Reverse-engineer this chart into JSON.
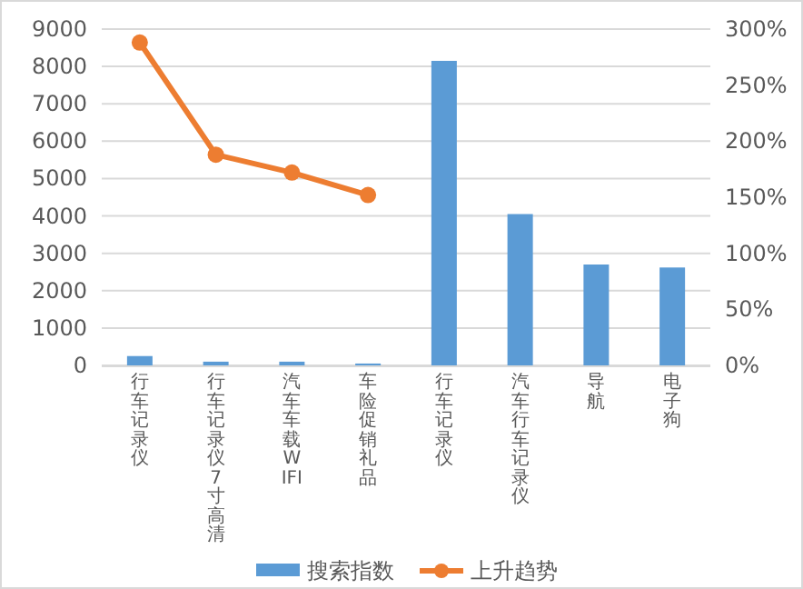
{
  "chart_data": {
    "type": "bar",
    "categories": [
      "行车记录仪",
      "行车记录仪7寸高清",
      "汽车车载WIFI",
      "车险促销礼品",
      "行车记录仪",
      "汽车行车记录仪",
      "导航",
      "电子狗"
    ],
    "series": [
      {
        "name": "搜索指数",
        "type": "bar",
        "color": "#5b9bd5",
        "values": [
          250,
          100,
          100,
          50,
          8150,
          4050,
          2700,
          2620
        ]
      },
      {
        "name": "上升趋势",
        "type": "line",
        "axis": "y2",
        "color": "#ed7d31",
        "marker": "circle",
        "values": [
          288,
          188,
          172,
          152,
          null,
          null,
          null,
          null
        ]
      }
    ],
    "ylim": [
      0,
      9000
    ],
    "yticks": [
      0,
      1000,
      2000,
      3000,
      4000,
      5000,
      6000,
      7000,
      8000,
      9000
    ],
    "y2lim": [
      0,
      300
    ],
    "y2ticks": [
      {
        "value": 0,
        "label": "0%"
      },
      {
        "value": 50,
        "label": "50%"
      },
      {
        "value": 100,
        "label": "100%"
      },
      {
        "value": 150,
        "label": "150%"
      },
      {
        "value": 200,
        "label": "200%"
      },
      {
        "value": 250,
        "label": "250%"
      },
      {
        "value": 300,
        "label": "300%"
      }
    ],
    "grid": "y",
    "legend": "bottom"
  }
}
